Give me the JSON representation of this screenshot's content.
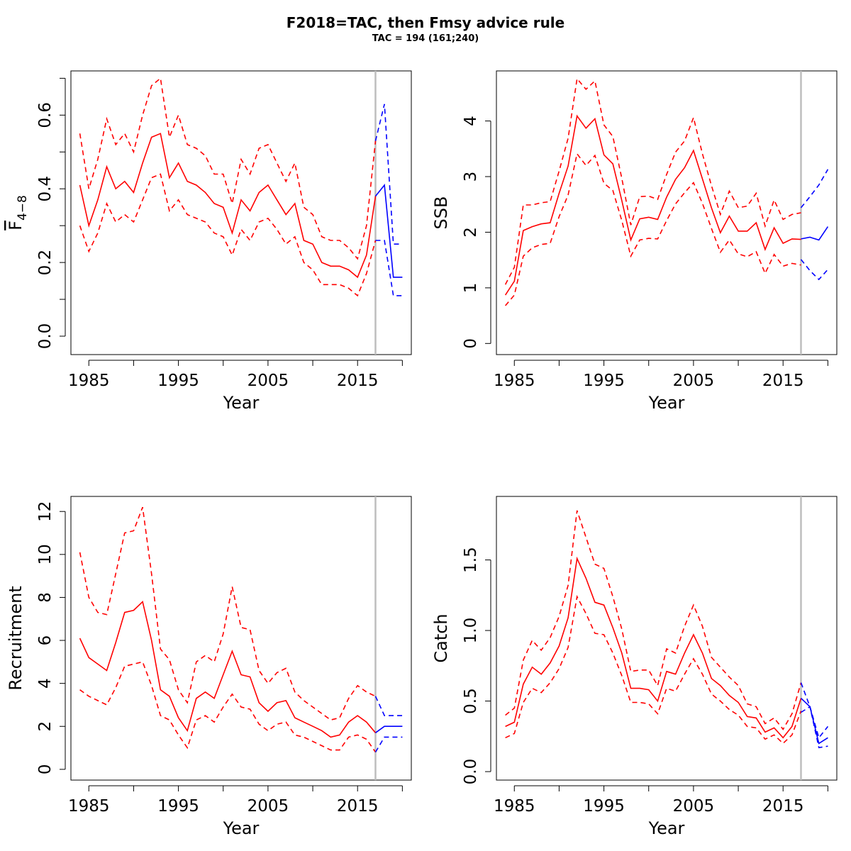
{
  "title": "F2018=TAC, then  Fmsy advice rule",
  "subtitle": "TAC = 194 (161;240)",
  "colors": {
    "historic": "#ff0000",
    "forecast": "#0000ff",
    "divider": "#bebebe",
    "axis": "#000000"
  },
  "chart_data": [
    {
      "type": "line",
      "ylabel": "F̅₄₋₈",
      "ylabel_main": "F",
      "ylabel_sub": "4−8",
      "xlabel": "Year",
      "xlim": [
        1983,
        2021
      ],
      "ylim": [
        -0.05,
        0.72
      ],
      "xticks": [
        1985,
        1995,
        2005,
        2015
      ],
      "xticks_minor": [
        1990,
        2000,
        2010,
        2020
      ],
      "yticks": [
        0.0,
        0.2,
        0.4,
        0.6
      ],
      "yticks_minor": [
        0.1,
        0.3,
        0.5,
        0.7
      ],
      "ytick_labels": [
        "0.0",
        "0.2",
        "0.4",
        "0.6"
      ],
      "divider_year": 2017,
      "hist_years": [
        1984,
        1985,
        1986,
        1987,
        1988,
        1989,
        1990,
        1991,
        1992,
        1993,
        1994,
        1995,
        1996,
        1997,
        1998,
        1999,
        2000,
        2001,
        2002,
        2003,
        2004,
        2005,
        2006,
        2007,
        2008,
        2009,
        2010,
        2011,
        2012,
        2013,
        2014,
        2015,
        2016,
        2017
      ],
      "hist_mid": [
        0.41,
        0.3,
        0.37,
        0.46,
        0.4,
        0.42,
        0.39,
        0.47,
        0.54,
        0.55,
        0.43,
        0.47,
        0.42,
        0.41,
        0.39,
        0.36,
        0.35,
        0.28,
        0.37,
        0.34,
        0.39,
        0.41,
        0.37,
        0.33,
        0.36,
        0.26,
        0.25,
        0.2,
        0.19,
        0.19,
        0.18,
        0.16,
        0.22,
        0.38
      ],
      "hist_upper": [
        0.55,
        0.4,
        0.48,
        0.59,
        0.52,
        0.55,
        0.5,
        0.6,
        0.68,
        0.7,
        0.54,
        0.6,
        0.52,
        0.51,
        0.49,
        0.44,
        0.44,
        0.36,
        0.48,
        0.44,
        0.51,
        0.52,
        0.47,
        0.42,
        0.47,
        0.35,
        0.33,
        0.27,
        0.26,
        0.26,
        0.24,
        0.21,
        0.3,
        0.53
      ],
      "hist_lower": [
        0.3,
        0.23,
        0.28,
        0.36,
        0.31,
        0.33,
        0.31,
        0.37,
        0.43,
        0.44,
        0.34,
        0.37,
        0.33,
        0.32,
        0.31,
        0.28,
        0.27,
        0.22,
        0.29,
        0.26,
        0.31,
        0.32,
        0.29,
        0.25,
        0.27,
        0.2,
        0.18,
        0.14,
        0.14,
        0.14,
        0.13,
        0.11,
        0.17,
        0.26
      ],
      "fc_years": [
        2017,
        2018,
        2019,
        2020
      ],
      "fc_mid": [
        0.38,
        0.41,
        0.16,
        0.16
      ],
      "fc_upper": [
        0.53,
        0.63,
        0.25,
        0.25
      ],
      "fc_lower": [
        0.26,
        0.26,
        0.11,
        0.11
      ]
    },
    {
      "type": "line",
      "ylabel": "SSB",
      "xlabel": "Year",
      "xlim": [
        1983,
        2021
      ],
      "ylim": [
        -0.2,
        4.9
      ],
      "xticks": [
        1985,
        1995,
        2005,
        2015
      ],
      "xticks_minor": [
        1990,
        2000,
        2010,
        2020
      ],
      "yticks": [
        0,
        1,
        2,
        3,
        4
      ],
      "yticks_minor": [],
      "ytick_labels": [
        "0",
        "1",
        "2",
        "3",
        "4"
      ],
      "divider_year": 2017,
      "hist_years": [
        1984,
        1985,
        1986,
        1987,
        1988,
        1989,
        1990,
        1991,
        1992,
        1993,
        1994,
        1995,
        1996,
        1997,
        1998,
        1999,
        2000,
        2001,
        2002,
        2003,
        2004,
        2005,
        2006,
        2007,
        2008,
        2009,
        2010,
        2011,
        2012,
        2013,
        2014,
        2015,
        2016,
        2017
      ],
      "hist_mid": [
        0.87,
        1.12,
        2.03,
        2.1,
        2.15,
        2.17,
        2.7,
        3.19,
        4.09,
        3.87,
        4.04,
        3.39,
        3.23,
        2.57,
        1.86,
        2.24,
        2.27,
        2.23,
        2.63,
        2.95,
        3.16,
        3.47,
        2.96,
        2.44,
        1.99,
        2.29,
        2.02,
        2.02,
        2.17,
        1.69,
        2.08,
        1.8,
        1.88,
        1.87
      ],
      "hist_upper": [
        1.06,
        1.37,
        2.49,
        2.49,
        2.53,
        2.55,
        3.1,
        3.69,
        4.76,
        4.57,
        4.72,
        3.93,
        3.72,
        2.97,
        2.13,
        2.64,
        2.65,
        2.59,
        3.04,
        3.44,
        3.64,
        4.06,
        3.41,
        2.84,
        2.32,
        2.74,
        2.44,
        2.47,
        2.7,
        2.11,
        2.58,
        2.23,
        2.32,
        2.35
      ],
      "hist_lower": [
        0.68,
        0.87,
        1.57,
        1.72,
        1.78,
        1.8,
        2.28,
        2.67,
        3.41,
        3.2,
        3.38,
        2.88,
        2.75,
        2.21,
        1.57,
        1.86,
        1.89,
        1.88,
        2.21,
        2.51,
        2.71,
        2.89,
        2.52,
        2.07,
        1.64,
        1.86,
        1.61,
        1.56,
        1.65,
        1.26,
        1.6,
        1.39,
        1.44,
        1.41
      ],
      "fc_years": [
        2017,
        2018,
        2019,
        2020
      ],
      "fc_mid": [
        1.88,
        1.91,
        1.86,
        2.1
      ],
      "fc_upper": [
        2.44,
        2.64,
        2.85,
        3.13
      ],
      "fc_lower": [
        1.51,
        1.31,
        1.15,
        1.33
      ]
    },
    {
      "type": "line",
      "ylabel": "Recruitment",
      "xlabel": "Year",
      "xlim": [
        1983,
        2021
      ],
      "ylim": [
        -0.5,
        12.7
      ],
      "xticks": [
        1985,
        1995,
        2005,
        2015
      ],
      "xticks_minor": [
        1990,
        2000,
        2010,
        2020
      ],
      "yticks": [
        0,
        2,
        4,
        6,
        8,
        10,
        12
      ],
      "yticks_minor": [],
      "ytick_labels": [
        "0",
        "2",
        "4",
        "6",
        "8",
        "10",
        "12"
      ],
      "divider_year": 2017,
      "hist_years": [
        1984,
        1985,
        1986,
        1987,
        1988,
        1989,
        1990,
        1991,
        1992,
        1993,
        1994,
        1995,
        1996,
        1997,
        1998,
        1999,
        2000,
        2001,
        2002,
        2003,
        2004,
        2005,
        2006,
        2007,
        2008,
        2009,
        2010,
        2011,
        2012,
        2013,
        2014,
        2015,
        2016,
        2017
      ],
      "hist_mid": [
        6.1,
        5.2,
        4.9,
        4.6,
        5.9,
        7.3,
        7.4,
        7.8,
        6.0,
        3.7,
        3.4,
        2.4,
        1.8,
        3.3,
        3.6,
        3.3,
        4.4,
        5.5,
        4.4,
        4.3,
        3.1,
        2.7,
        3.1,
        3.2,
        2.4,
        2.2,
        2.0,
        1.8,
        1.5,
        1.6,
        2.2,
        2.5,
        2.2,
        1.7
      ],
      "hist_upper": [
        10.1,
        8.0,
        7.3,
        7.2,
        9.1,
        11.0,
        11.1,
        12.2,
        9.1,
        5.6,
        5.1,
        3.7,
        3.1,
        5.0,
        5.3,
        5.0,
        6.3,
        8.5,
        6.6,
        6.5,
        4.6,
        4.0,
        4.5,
        4.7,
        3.6,
        3.2,
        2.9,
        2.6,
        2.3,
        2.4,
        3.3,
        3.9,
        3.6,
        3.4
      ],
      "hist_lower": [
        3.7,
        3.4,
        3.2,
        3.0,
        3.8,
        4.8,
        4.9,
        5.0,
        3.9,
        2.5,
        2.3,
        1.6,
        1.0,
        2.3,
        2.5,
        2.2,
        2.9,
        3.5,
        2.9,
        2.8,
        2.1,
        1.8,
        2.1,
        2.2,
        1.6,
        1.5,
        1.3,
        1.1,
        0.9,
        0.9,
        1.5,
        1.6,
        1.4,
        0.8
      ],
      "fc_years": [
        2017,
        2018,
        2019,
        2020
      ],
      "fc_mid": [
        1.7,
        2.0,
        2.0,
        2.0
      ],
      "fc_upper": [
        3.4,
        2.5,
        2.5,
        2.5
      ],
      "fc_lower": [
        0.8,
        1.5,
        1.5,
        1.5
      ]
    },
    {
      "type": "line",
      "ylabel": "Catch",
      "xlabel": "Year",
      "xlim": [
        1983,
        2021
      ],
      "ylim": [
        -0.06,
        1.95
      ],
      "xticks": [
        1985,
        1995,
        2005,
        2015
      ],
      "xticks_minor": [
        1990,
        2000,
        2010,
        2020
      ],
      "yticks": [
        0.0,
        0.5,
        1.0,
        1.5
      ],
      "yticks_minor": [],
      "ytick_labels": [
        "0.0",
        "0.5",
        "1.0",
        "1.5"
      ],
      "divider_year": 2017,
      "hist_years": [
        1984,
        1985,
        1986,
        1987,
        1988,
        1989,
        1990,
        1991,
        1992,
        1993,
        1994,
        1995,
        1996,
        1997,
        1998,
        1999,
        2000,
        2001,
        2002,
        2003,
        2004,
        2005,
        2006,
        2007,
        2008,
        2009,
        2010,
        2011,
        2012,
        2013,
        2014,
        2015,
        2016,
        2017
      ],
      "hist_mid": [
        0.32,
        0.35,
        0.62,
        0.74,
        0.69,
        0.77,
        0.89,
        1.09,
        1.51,
        1.37,
        1.2,
        1.18,
        1.02,
        0.84,
        0.59,
        0.59,
        0.58,
        0.5,
        0.71,
        0.69,
        0.84,
        0.97,
        0.84,
        0.66,
        0.61,
        0.54,
        0.49,
        0.39,
        0.38,
        0.28,
        0.31,
        0.24,
        0.32,
        0.52
      ],
      "hist_upper": [
        0.4,
        0.45,
        0.79,
        0.93,
        0.86,
        0.95,
        1.1,
        1.32,
        1.85,
        1.66,
        1.47,
        1.44,
        1.24,
        1.01,
        0.71,
        0.72,
        0.72,
        0.61,
        0.87,
        0.84,
        1.03,
        1.18,
        1.03,
        0.81,
        0.74,
        0.67,
        0.61,
        0.48,
        0.46,
        0.34,
        0.38,
        0.3,
        0.41,
        0.63
      ],
      "hist_lower": [
        0.24,
        0.27,
        0.49,
        0.59,
        0.56,
        0.63,
        0.73,
        0.88,
        1.24,
        1.12,
        0.98,
        0.97,
        0.84,
        0.68,
        0.49,
        0.49,
        0.48,
        0.41,
        0.59,
        0.57,
        0.69,
        0.8,
        0.69,
        0.55,
        0.5,
        0.44,
        0.4,
        0.32,
        0.31,
        0.23,
        0.26,
        0.2,
        0.26,
        0.43
      ],
      "fc_years": [
        2017,
        2018,
        2019,
        2020
      ],
      "fc_mid": [
        0.52,
        0.46,
        0.2,
        0.24
      ],
      "fc_upper": [
        0.63,
        0.46,
        0.24,
        0.32
      ],
      "fc_lower": [
        0.42,
        0.46,
        0.17,
        0.18
      ]
    }
  ]
}
